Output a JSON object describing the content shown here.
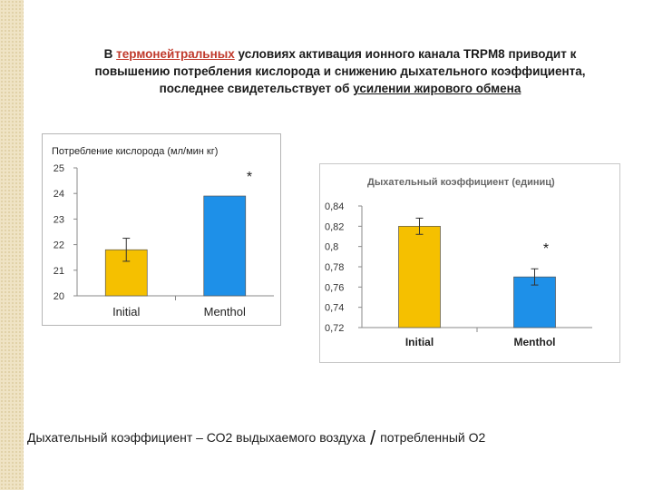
{
  "heading": {
    "part1": "В ",
    "link_word": "термонейтральных",
    "part2": " условиях активация ионного канала TRPM8 приводит к",
    "line2": "повышению потребления кислорода и снижению дыхательного коэффициента,",
    "part3": "последнее свидетельствует об ",
    "emph": "усилении жирового обмена"
  },
  "footer": {
    "left": "Дыхательный коэффициент – СО2 выдыхаемого воздуха",
    "slash": "/",
    "right": "потребленный О2"
  },
  "chart_data": [
    {
      "type": "bar",
      "title": "Потребление кислорода (мл/мин кг)",
      "categories": [
        "Initial",
        "Menthol"
      ],
      "values": [
        21.8,
        23.9
      ],
      "errors": [
        0.45,
        0
      ],
      "ylim": [
        20,
        25
      ],
      "yticks": [
        "20",
        "21",
        "22",
        "23",
        "24",
        "25"
      ],
      "bar_colors": [
        "#f5c000",
        "#1e90e8"
      ],
      "annotation": "*",
      "grid": false
    },
    {
      "type": "bar",
      "title": "Дыхательный коэффициент (единиц)",
      "categories": [
        "Initial",
        "Menthol"
      ],
      "values": [
        0.82,
        0.77
      ],
      "errors": [
        0.008,
        0.008
      ],
      "ylim": [
        0.72,
        0.84
      ],
      "yticks": [
        "0,72",
        "0,74",
        "0,76",
        "0,78",
        "0,8",
        "0,82",
        "0,84"
      ],
      "bar_colors": [
        "#f5c000",
        "#1e90e8"
      ],
      "annotation": "*",
      "grid": false
    }
  ]
}
